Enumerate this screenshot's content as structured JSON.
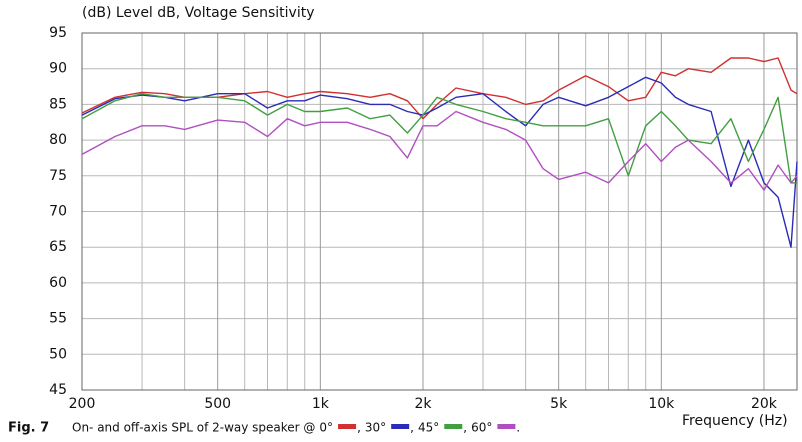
{
  "chart_data": {
    "type": "line",
    "title": "(dB)  Level dB, Voltage Sensitivity",
    "x_label": "Frequency  (Hz)",
    "figure_label": "Fig. 7",
    "caption_prefix": "On- and off-axis SPL of 2-way speaker @",
    "legend_separators": [
      ",",
      ",",
      ",",
      "."
    ],
    "log_x": true,
    "grid": true,
    "xlim": [
      200,
      25000
    ],
    "ylim": [
      45,
      95
    ],
    "yticks": [
      45,
      50,
      55,
      60,
      65,
      70,
      75,
      80,
      85,
      90,
      95
    ],
    "xticks": [
      200,
      500,
      {
        "value": 1000,
        "label": "1k"
      },
      {
        "value": 2000,
        "label": "2k"
      },
      {
        "value": 5000,
        "label": "5k"
      },
      {
        "value": 10000,
        "label": "10k"
      },
      {
        "value": 20000,
        "label": "20k"
      }
    ],
    "xminor": [
      300,
      400,
      600,
      700,
      800,
      900,
      3000,
      4000,
      6000,
      7000,
      8000,
      9000
    ],
    "x": [
      200,
      250,
      300,
      350,
      400,
      500,
      600,
      700,
      800,
      900,
      1000,
      1200,
      1400,
      1600,
      1800,
      2000,
      2200,
      2500,
      3000,
      3500,
      4000,
      4500,
      5000,
      6000,
      7000,
      8000,
      9000,
      10000,
      11000,
      12000,
      14000,
      16000,
      18000,
      20000,
      22000,
      24000,
      25000
    ],
    "series": [
      {
        "name": "0°",
        "color": "#d03030",
        "values": [
          83.8,
          86,
          86.7,
          86.5,
          86,
          86,
          86.5,
          86.8,
          86,
          86.5,
          86.8,
          86.5,
          86,
          86.5,
          85.5,
          83,
          85,
          87.3,
          86.5,
          86,
          85,
          85.5,
          87,
          89,
          87.5,
          85.5,
          86,
          89.5,
          89,
          90,
          89.5,
          91.5,
          91.5,
          91,
          91.5,
          87,
          86.5
        ]
      },
      {
        "name": "30°",
        "color": "#2b2bb8",
        "values": [
          83.5,
          85.8,
          86.3,
          86,
          85.5,
          86.5,
          86.5,
          84.5,
          85.5,
          85.5,
          86.3,
          85.8,
          85,
          85,
          84,
          83.5,
          84.5,
          86,
          86.5,
          84,
          82,
          85,
          86,
          84.8,
          86,
          87.5,
          88.8,
          88,
          86,
          85,
          84,
          73.5,
          80,
          74,
          72,
          65,
          77
        ]
      },
      {
        "name": "45°",
        "color": "#40a040",
        "values": [
          83,
          85.5,
          86.5,
          86,
          86,
          86,
          85.5,
          83.5,
          85,
          84,
          84,
          84.5,
          83,
          83.5,
          81,
          83.5,
          86,
          85,
          84,
          83,
          82.5,
          82,
          82,
          82,
          83,
          75,
          82,
          84,
          82,
          80,
          79.5,
          83,
          77,
          81.5,
          86,
          74,
          74
        ]
      },
      {
        "name": "60°",
        "color": "#b050c0",
        "values": [
          78,
          80.5,
          82,
          82,
          81.5,
          82.8,
          82.5,
          80.5,
          83,
          82,
          82.5,
          82.5,
          81.5,
          80.5,
          77.5,
          82,
          82,
          84,
          82.5,
          81.5,
          80,
          76,
          74.5,
          75.5,
          74,
          77,
          79.5,
          77,
          79,
          80,
          77,
          74,
          76,
          73,
          76.5,
          74,
          75
        ]
      }
    ]
  }
}
